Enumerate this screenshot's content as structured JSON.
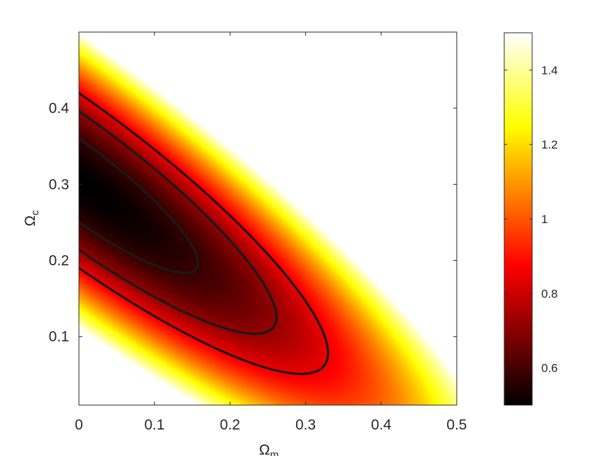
{
  "chart_data": {
    "type": "heatmap",
    "title": "",
    "xlabel": "Ω",
    "xlabel_sub": "m",
    "ylabel": "Ω",
    "ylabel_sub": "c",
    "xlim": [
      0,
      0.5
    ],
    "ylim": [
      0.01,
      0.5
    ],
    "xticks": [
      0,
      0.1,
      0.2,
      0.3,
      0.4,
      0.5
    ],
    "xtick_labels": [
      "0",
      "0.1",
      "0.2",
      "0.3",
      "0.4",
      "0.5"
    ],
    "yticks": [
      0.1,
      0.2,
      0.3,
      0.4
    ],
    "ytick_labels": [
      "0.1",
      "0.2",
      "0.3",
      "0.4"
    ],
    "colorbar": {
      "range": [
        0.5,
        1.5
      ],
      "ticks": [
        0.6,
        0.8,
        1,
        1.2,
        1.4
      ],
      "tick_labels": [
        "0.6",
        "0.8",
        "1",
        "1.2",
        "1.4"
      ],
      "colormap": "hot"
    },
    "field": {
      "minimum_value": 0.5,
      "minimum_at": {
        "x": 0,
        "y": 0.305
      },
      "cutoff_value": 1.5
    },
    "contour_levels": [
      0.58,
      0.72,
      0.85
    ],
    "grid": false,
    "legend": "none"
  }
}
